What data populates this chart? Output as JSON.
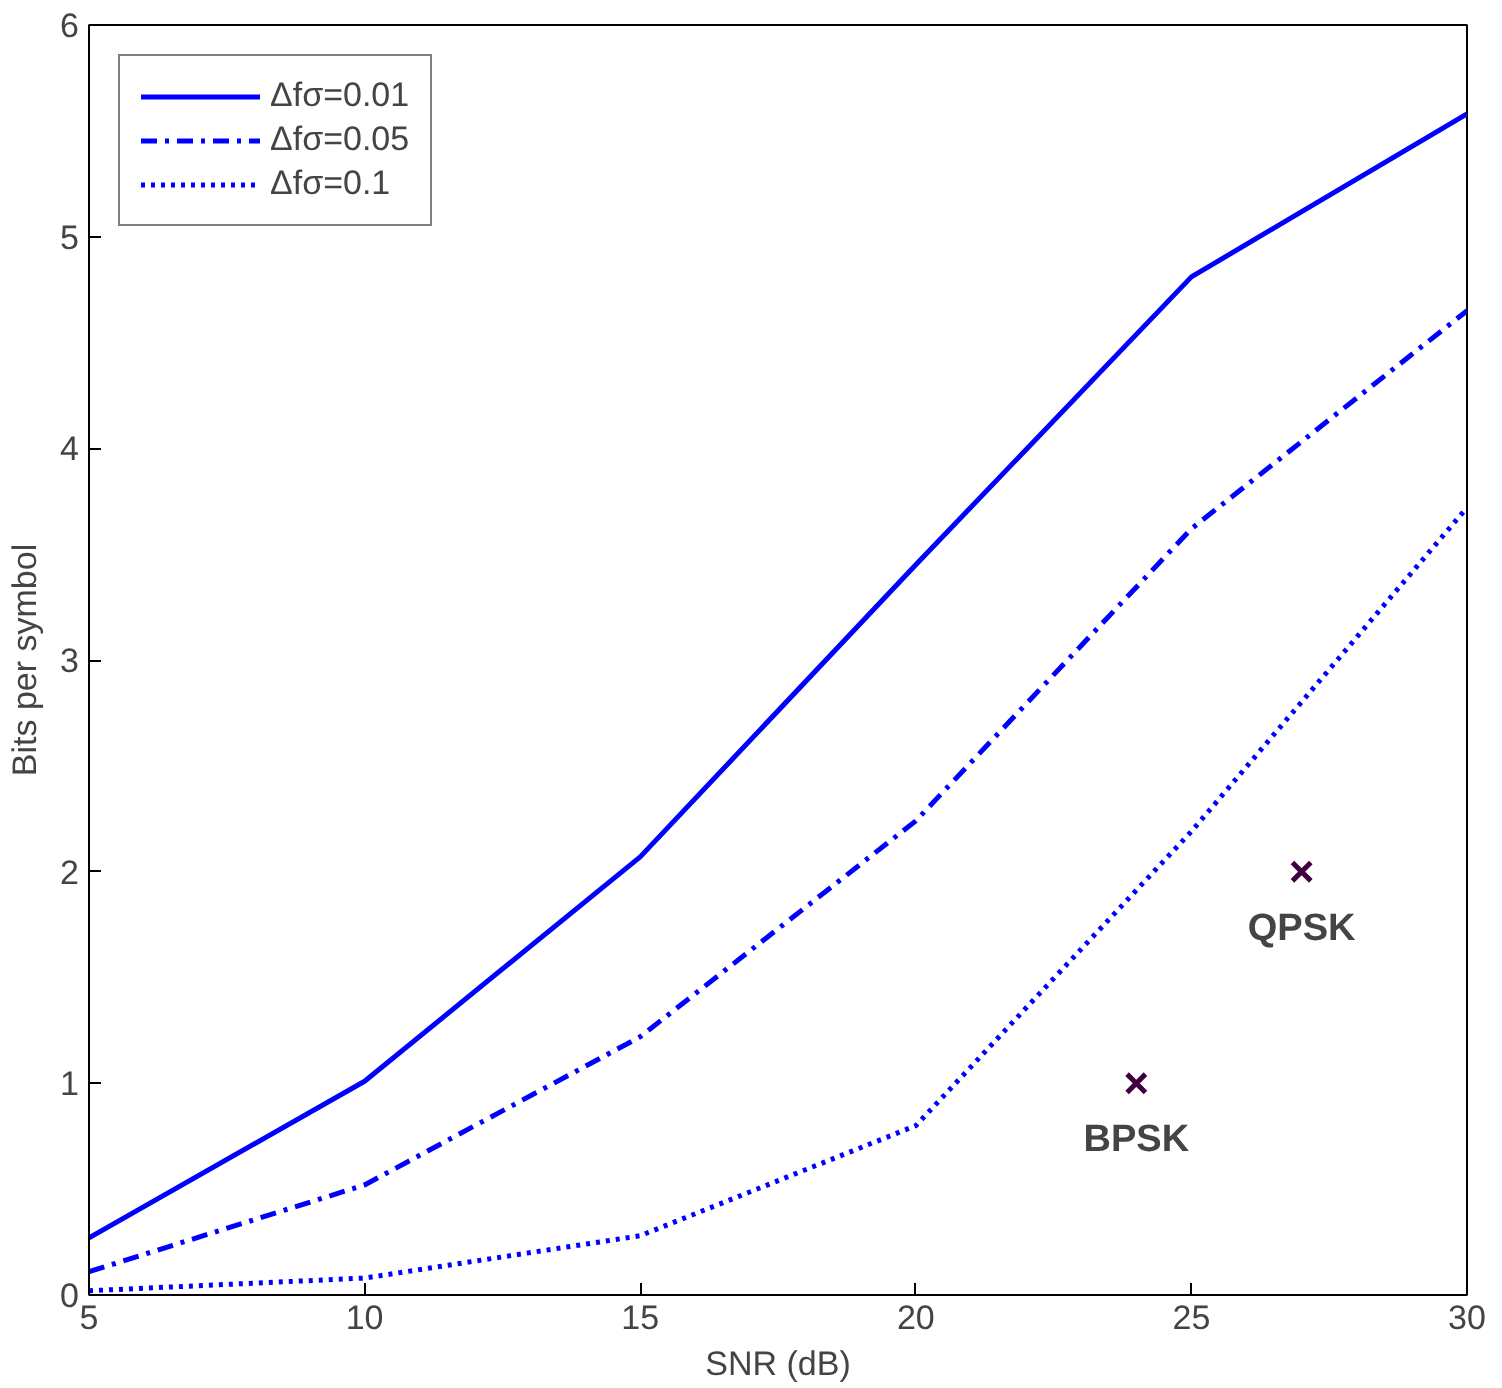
{
  "chart_data": {
    "type": "line",
    "xlabel": "SNR (dB)",
    "ylabel": "Bits per symbol",
    "x": [
      5,
      10,
      15,
      20,
      25,
      30
    ],
    "series": [
      {
        "name": "Δfσ=0.01",
        "color": "#0000ff",
        "line_style": "solid",
        "values": [
          0.27,
          1.01,
          2.07,
          3.45,
          4.81,
          5.58
        ]
      },
      {
        "name": "Δfσ=0.05",
        "color": "#0000ff",
        "line_style": "dashdot",
        "values": [
          0.11,
          0.52,
          1.22,
          2.24,
          3.62,
          4.65
        ]
      },
      {
        "name": "Δfσ=0.1",
        "color": "#0000ff",
        "line_style": "dotted",
        "values": [
          0.02,
          0.08,
          0.28,
          0.8,
          2.19,
          3.72
        ]
      },
      {
        "type": "scatter",
        "marker": "cross",
        "color": "#400040",
        "x": [
          24,
          27
        ],
        "values": [
          1,
          2
        ]
      }
    ],
    "annotations": [
      {
        "text": "BPSK",
        "x": 24,
        "y": 1
      },
      {
        "text": "QPSK",
        "x": 27,
        "y": 2
      }
    ],
    "xlim": [
      5,
      30
    ],
    "ylim": [
      0,
      6
    ],
    "xticks": [
      5,
      10,
      15,
      20,
      25,
      30
    ],
    "yticks": [
      0,
      1,
      2,
      3,
      4,
      5,
      6
    ],
    "grid": false,
    "legend": "top left"
  }
}
